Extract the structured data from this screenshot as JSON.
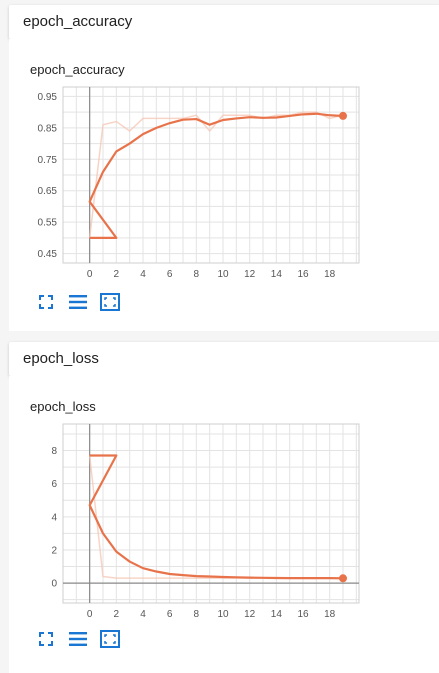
{
  "colors": {
    "accent": "#e8734a",
    "faint": "#f6c6b3",
    "icon": "#1976d2"
  },
  "toolbar_icons": [
    "fullscreen-icon",
    "list-icon",
    "fit-domain-icon"
  ],
  "sections": [
    {
      "header": "epoch_accuracy",
      "card_title": "epoch_accuracy"
    },
    {
      "header": "epoch_loss",
      "card_title": "epoch_loss"
    }
  ],
  "chart_data": [
    {
      "type": "line",
      "title": "epoch_accuracy",
      "xlim": [
        -2,
        20.2
      ],
      "ylim": [
        0.42,
        0.98
      ],
      "x_ticks": [
        "0",
        "2",
        "4",
        "6",
        "8",
        "10",
        "12",
        "14",
        "16",
        "18"
      ],
      "x_tick_values": [
        0,
        2,
        4,
        6,
        8,
        10,
        12,
        14,
        16,
        18
      ],
      "y_ticks": [
        "0.95",
        "0.85",
        "0.75",
        "0.65",
        "0.55",
        "0.45"
      ],
      "y_tick_values": [
        0.95,
        0.85,
        0.75,
        0.65,
        0.55,
        0.45
      ],
      "series": [
        {
          "style": "raw",
          "x": [
            0,
            1,
            2,
            3,
            4,
            5,
            6,
            7,
            8,
            9,
            10,
            11,
            12,
            13,
            14,
            15,
            16,
            17,
            18,
            19
          ],
          "y": [
            0.5,
            0.86,
            0.87,
            0.84,
            0.88,
            0.88,
            0.88,
            0.88,
            0.89,
            0.84,
            0.89,
            0.89,
            0.89,
            0.88,
            0.89,
            0.89,
            0.9,
            0.9,
            0.88,
            0.89
          ]
        },
        {
          "style": "smoothed",
          "x": [
            0,
            2,
            0,
            1,
            2,
            3,
            4,
            5,
            6,
            7,
            8,
            9,
            10,
            11,
            12,
            13,
            14,
            15,
            16,
            17,
            18,
            19
          ],
          "y": [
            0.5,
            0.5,
            0.615,
            0.71,
            0.775,
            0.8,
            0.83,
            0.85,
            0.865,
            0.876,
            0.878,
            0.86,
            0.875,
            0.88,
            0.884,
            0.882,
            0.883,
            0.888,
            0.893,
            0.895,
            0.89,
            0.888
          ]
        }
      ]
    },
    {
      "type": "line",
      "title": "epoch_loss",
      "xlim": [
        -2,
        20.2
      ],
      "ylim": [
        -1.2,
        9.6
      ],
      "x_ticks": [
        "0",
        "2",
        "4",
        "6",
        "8",
        "10",
        "12",
        "14",
        "16",
        "18"
      ],
      "x_tick_values": [
        0,
        2,
        4,
        6,
        8,
        10,
        12,
        14,
        16,
        18
      ],
      "y_ticks": [
        "8",
        "6",
        "4",
        "2",
        "0"
      ],
      "y_tick_values": [
        8,
        6,
        4,
        2,
        0
      ],
      "series": [
        {
          "style": "raw",
          "x": [
            0,
            1,
            2,
            3,
            4,
            5,
            6,
            7,
            8,
            9,
            10,
            11,
            12,
            13,
            14,
            15,
            16,
            17,
            18,
            19
          ],
          "y": [
            7.7,
            0.4,
            0.3,
            0.3,
            0.3,
            0.3,
            0.3,
            0.3,
            0.3,
            0.3,
            0.3,
            0.3,
            0.3,
            0.3,
            0.3,
            0.3,
            0.3,
            0.3,
            0.3,
            0.3
          ]
        },
        {
          "style": "smoothed",
          "x": [
            0,
            2,
            0,
            1,
            2,
            3,
            4,
            5,
            6,
            7,
            8,
            9,
            10,
            11,
            12,
            13,
            14,
            15,
            16,
            17,
            18,
            19
          ],
          "y": [
            7.7,
            7.7,
            4.7,
            3.0,
            1.9,
            1.3,
            0.9,
            0.7,
            0.55,
            0.48,
            0.42,
            0.4,
            0.37,
            0.35,
            0.33,
            0.32,
            0.31,
            0.3,
            0.3,
            0.3,
            0.3,
            0.29
          ]
        }
      ]
    }
  ]
}
